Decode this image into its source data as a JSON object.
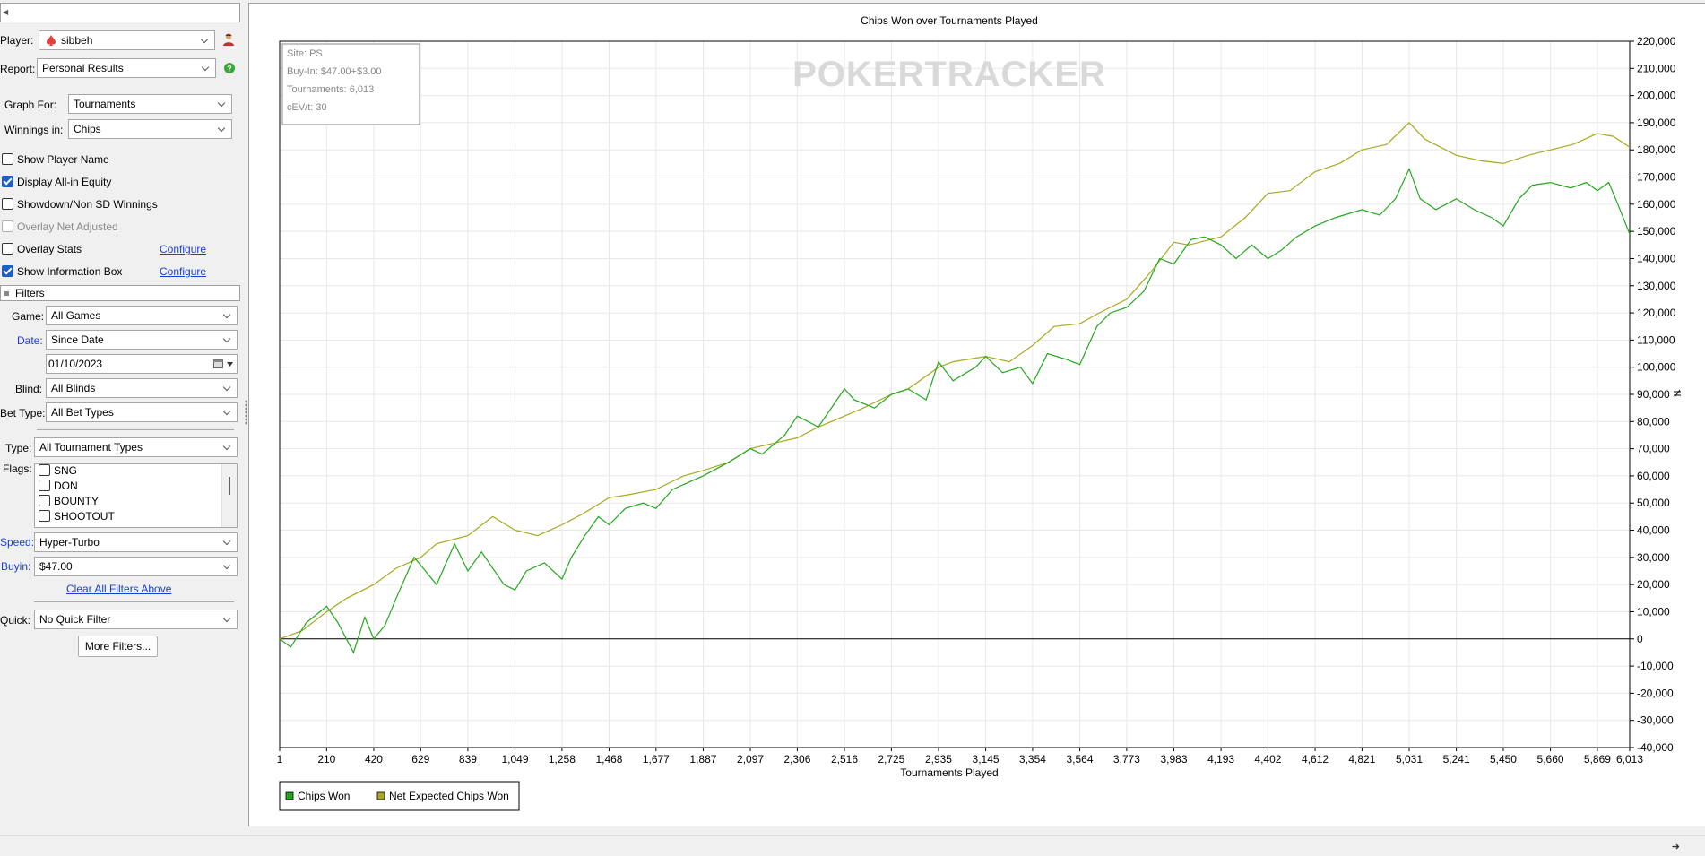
{
  "sidebar": {
    "player_label": "Player:",
    "player_value": "sibbeh",
    "report_label": "Report:",
    "report_value": "Personal Results",
    "graph_for_label": "Graph For:",
    "graph_for_value": "Tournaments",
    "winnings_in_label": "Winnings in:",
    "winnings_in_value": "Chips",
    "options": [
      {
        "label": "Show Player Name",
        "checked": false,
        "disabled": false
      },
      {
        "label": "Display All-in Equity",
        "checked": true,
        "disabled": false
      },
      {
        "label": "Showdown/Non SD Winnings",
        "checked": false,
        "disabled": false
      },
      {
        "label": "Overlay Net Adjusted",
        "checked": false,
        "disabled": true
      },
      {
        "label": "Overlay Stats",
        "checked": false,
        "disabled": false
      },
      {
        "label": "Show Information Box",
        "checked": true,
        "disabled": false
      }
    ],
    "configure_label": "Configure",
    "filters_title": "Filters",
    "game_label": "Game:",
    "game_value": "All Games",
    "date_label": "Date:",
    "date_value": "Since Date",
    "date_input": "01/10/2023",
    "blind_label": "Blind:",
    "blind_value": "All Blinds",
    "bet_type_label": "Bet Type:",
    "bet_type_value": "All Bet Types",
    "type_label": "Type:",
    "type_value": "All Tournament Types",
    "flags_label": "Flags:",
    "flags": [
      "SNG",
      "DON",
      "BOUNTY",
      "SHOOTOUT"
    ],
    "speed_label": "Speed:",
    "speed_value": "Hyper-Turbo",
    "buyin_label": "Buyin:",
    "buyin_value": "$47.00",
    "clear_filters": "Clear All Filters Above",
    "quick_label": "Quick:",
    "quick_value": "No Quick Filter",
    "more_filters": "More Filters..."
  },
  "info_box": {
    "site": "Site: PS",
    "buy_in": "Buy-In: $47.00+$3.00",
    "tournaments": "Tournaments: 6,013",
    "cev": "cEV/t: 30"
  },
  "watermark": "POKERTRACKER",
  "colors": {
    "chips_won": "#22a81c",
    "net_expected": "#a8a820",
    "grid": "#e8e8e8",
    "link": "#1a3fd6"
  },
  "chart_data": {
    "type": "line",
    "title": "Chips Won over Tournaments Played",
    "xlabel": "Tournaments Played",
    "ylabel": "",
    "xlim": [
      1,
      6013
    ],
    "ylim": [
      -40000,
      220000
    ],
    "x_ticks": [
      "1",
      "210",
      "420",
      "629",
      "839",
      "1,049",
      "1,258",
      "1,468",
      "1,677",
      "1,887",
      "2,097",
      "2,306",
      "2,516",
      "2,725",
      "2,935",
      "3,145",
      "3,354",
      "3,564",
      "3,773",
      "3,983",
      "4,193",
      "4,402",
      "4,612",
      "4,821",
      "5,031",
      "5,241",
      "5,450",
      "5,660",
      "5,869",
      "6,013"
    ],
    "y_ticks": [
      "220,000",
      "210,000",
      "200,000",
      "190,000",
      "180,000",
      "170,000",
      "160,000",
      "150,000",
      "140,000",
      "130,000",
      "120,000",
      "110,000",
      "100,000",
      "90,000",
      "80,000",
      "70,000",
      "60,000",
      "50,000",
      "40,000",
      "30,000",
      "20,000",
      "10,000",
      "0",
      "-10,000",
      "-20,000",
      "-30,000",
      "-40,000"
    ],
    "legend_position": "bottom-left",
    "grid": true,
    "series": [
      {
        "name": "Chips Won",
        "x": [
          1,
          50,
          120,
          210,
          260,
          330,
          380,
          420,
          470,
          520,
          600,
          700,
          780,
          839,
          900,
          1000,
          1049,
          1100,
          1180,
          1258,
          1300,
          1360,
          1420,
          1468,
          1540,
          1620,
          1677,
          1750,
          1887,
          2000,
          2097,
          2150,
          2250,
          2306,
          2400,
          2516,
          2560,
          2650,
          2725,
          2800,
          2880,
          2935,
          3000,
          3100,
          3145,
          3220,
          3300,
          3354,
          3420,
          3500,
          3564,
          3640,
          3700,
          3773,
          3850,
          3920,
          3983,
          4060,
          4120,
          4193,
          4260,
          4330,
          4402,
          4460,
          4530,
          4612,
          4700,
          4821,
          4900,
          4970,
          5031,
          5080,
          5150,
          5241,
          5320,
          5400,
          5450,
          5520,
          5580,
          5660,
          5750,
          5820,
          5869,
          5920,
          5960,
          6013
        ],
        "y": [
          0,
          -3000,
          6000,
          12000,
          6000,
          -5000,
          8000,
          0,
          5000,
          15000,
          30000,
          20000,
          35000,
          25000,
          32000,
          20000,
          18000,
          25000,
          28000,
          22000,
          30000,
          38000,
          45000,
          42000,
          48000,
          50000,
          48000,
          55000,
          60000,
          65000,
          70000,
          68000,
          75000,
          82000,
          78000,
          92000,
          88000,
          85000,
          90000,
          92000,
          88000,
          102000,
          95000,
          100000,
          104000,
          98000,
          100000,
          94000,
          105000,
          103000,
          101000,
          115000,
          120000,
          122000,
          128000,
          140000,
          138000,
          147000,
          148000,
          145000,
          140000,
          145000,
          140000,
          143000,
          148000,
          152000,
          155000,
          158000,
          156000,
          162000,
          173000,
          162000,
          158000,
          162000,
          158000,
          155000,
          152000,
          162000,
          167000,
          168000,
          166000,
          168000,
          165000,
          168000,
          160000,
          149000
        ]
      },
      {
        "name": "Net Expected Chips Won",
        "x": [
          1,
          100,
          210,
          300,
          420,
          520,
          629,
          700,
          839,
          950,
          1049,
          1150,
          1258,
          1350,
          1468,
          1550,
          1677,
          1800,
          1887,
          2000,
          2097,
          2200,
          2306,
          2400,
          2516,
          2600,
          2725,
          2800,
          2935,
          3000,
          3145,
          3250,
          3354,
          3450,
          3564,
          3650,
          3773,
          3880,
          3983,
          4050,
          4193,
          4300,
          4402,
          4500,
          4612,
          4720,
          4821,
          4930,
          5031,
          5100,
          5241,
          5350,
          5450,
          5560,
          5660,
          5760,
          5869,
          5940,
          6013
        ],
        "y": [
          0,
          3000,
          10000,
          15000,
          20000,
          26000,
          30000,
          35000,
          38000,
          45000,
          40000,
          38000,
          42000,
          46000,
          52000,
          53000,
          55000,
          60000,
          62000,
          65000,
          70000,
          72000,
          74000,
          78000,
          82000,
          85000,
          90000,
          92000,
          100000,
          102000,
          104000,
          102000,
          108000,
          115000,
          116000,
          120000,
          125000,
          135000,
          146000,
          145000,
          148000,
          155000,
          164000,
          165000,
          172000,
          175000,
          180000,
          182000,
          190000,
          184000,
          178000,
          176000,
          175000,
          178000,
          180000,
          182000,
          186000,
          185000,
          181000
        ]
      }
    ]
  }
}
